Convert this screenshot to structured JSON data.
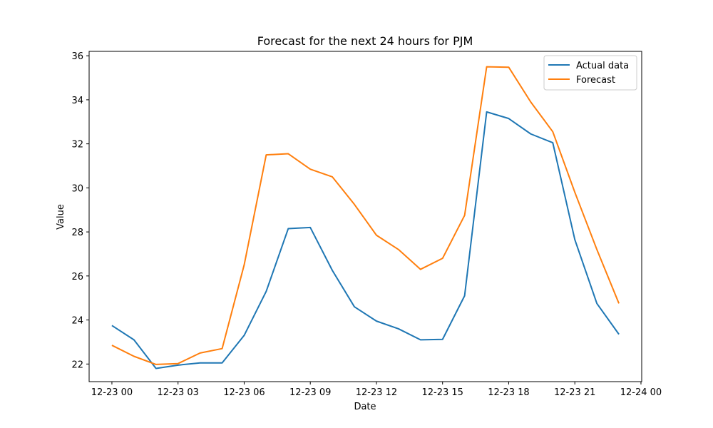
{
  "chart_data": {
    "type": "line",
    "title": "Forecast for the next 24 hours for PJM",
    "xlabel": "Date",
    "ylabel": "Value",
    "x": [
      "12-23 00",
      "12-23 01",
      "12-23 02",
      "12-23 03",
      "12-23 04",
      "12-23 05",
      "12-23 06",
      "12-23 07",
      "12-23 08",
      "12-23 09",
      "12-23 10",
      "12-23 11",
      "12-23 12",
      "12-23 13",
      "12-23 14",
      "12-23 15",
      "12-23 16",
      "12-23 17",
      "12-23 18",
      "12-23 19",
      "12-23 20",
      "12-23 21",
      "12-23 22",
      "12-23 23"
    ],
    "x_ticks": [
      "12-23 00",
      "12-23 03",
      "12-23 06",
      "12-23 09",
      "12-23 12",
      "12-23 15",
      "12-23 18",
      "12-23 21",
      "12-24 00"
    ],
    "xlim": [
      "12-22 22:58",
      "12-24 00:02"
    ],
    "ylim": [
      21.2,
      36.2
    ],
    "y_ticks": [
      22,
      24,
      26,
      28,
      30,
      32,
      34,
      36
    ],
    "series": [
      {
        "name": "Actual data",
        "color": "#1f77b4",
        "values": [
          23.75,
          23.1,
          21.8,
          21.95,
          22.05,
          22.05,
          23.3,
          25.3,
          28.15,
          28.2,
          26.25,
          24.6,
          23.95,
          23.6,
          23.1,
          23.12,
          25.1,
          33.45,
          33.15,
          32.45,
          32.05,
          27.65,
          24.75,
          23.35
        ]
      },
      {
        "name": "Forecast",
        "color": "#ff7f0e",
        "values": [
          22.85,
          22.35,
          21.98,
          22.02,
          22.5,
          22.7,
          26.5,
          31.5,
          31.55,
          30.85,
          30.5,
          29.25,
          27.85,
          27.2,
          26.3,
          26.8,
          28.75,
          35.5,
          35.48,
          33.9,
          32.55,
          29.8,
          27.2,
          24.75
        ]
      }
    ],
    "legend_position": "top-right",
    "grid": false
  }
}
